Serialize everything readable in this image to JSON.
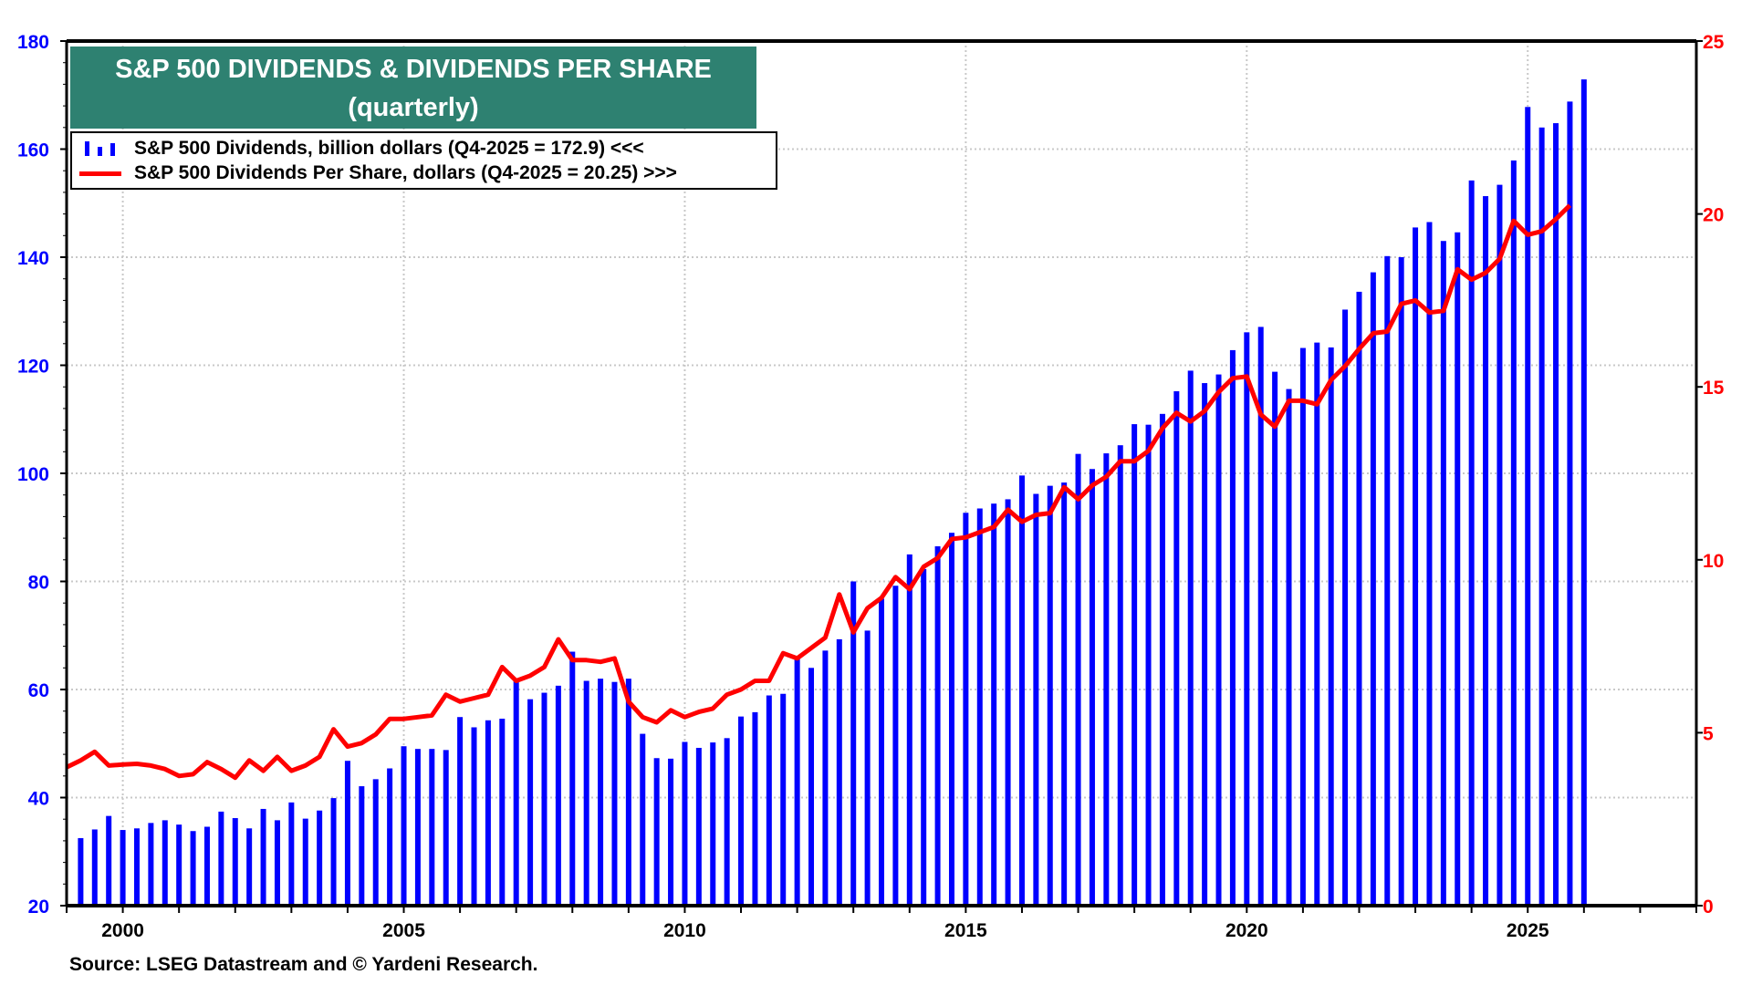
{
  "chart_data": {
    "type": "bar+line",
    "title": "S&P 500 DIVIDENDS & DIVIDENDS PER SHARE",
    "subtitle": "(quarterly)",
    "source": "Source: LSEG Datastream and © Yardeni Research.",
    "x_ticks": [
      "2000",
      "2005",
      "2010",
      "2015",
      "2020",
      "2025"
    ],
    "x_range": [
      1999,
      2028
    ],
    "left_axis": {
      "ticks": [
        "20",
        "40",
        "60",
        "80",
        "100",
        "120",
        "140",
        "160",
        "180"
      ],
      "range": [
        20,
        180
      ],
      "color": "#0000ff"
    },
    "right_axis": {
      "ticks": [
        "0",
        "5",
        "10",
        "15",
        "20",
        "25"
      ],
      "range": [
        0,
        25
      ],
      "color": "#ff0000"
    },
    "grid": true,
    "legend_placement": "top-left",
    "start_year": 1999,
    "series": [
      {
        "name": "S&P 500 Dividends, billion dollars (Q4-2025 = 172.9) <<<",
        "type": "bar",
        "axis": "left",
        "color": "#0000ff",
        "values": [
          32.5,
          34.1,
          36.6,
          34.0,
          34.3,
          35.3,
          35.8,
          35.0,
          33.8,
          34.6,
          37.4,
          36.2,
          34.3,
          37.9,
          35.8,
          39.1,
          36.1,
          37.6,
          39.9,
          46.8,
          42.1,
          43.4,
          45.4,
          49.5,
          49.0,
          49.0,
          48.8,
          54.9,
          53.0,
          54.3,
          54.6,
          61.9,
          58.2,
          59.4,
          60.7,
          67.0,
          61.6,
          62.0,
          61.4,
          62.0,
          51.8,
          47.3,
          47.2,
          50.3,
          49.2,
          50.2,
          51.0,
          55.0,
          55.8,
          58.9,
          59.2,
          65.8,
          64.0,
          67.2,
          69.3,
          80.0,
          70.9,
          76.8,
          79.2,
          85.0,
          82.3,
          86.5,
          89.0,
          92.7,
          93.5,
          94.4,
          95.2,
          99.6,
          96.2,
          97.7,
          98.3,
          103.6,
          100.8,
          103.7,
          105.2,
          109.1,
          109.0,
          111.0,
          115.2,
          119.0,
          116.7,
          118.3,
          122.8,
          126.1,
          127.1,
          118.8,
          115.6,
          123.2,
          124.2,
          123.3,
          130.3,
          133.6,
          137.2,
          140.2,
          140.0,
          145.5,
          146.5,
          143.0,
          144.6,
          154.2,
          151.3,
          153.4,
          157.9,
          167.8,
          164.0,
          164.8,
          168.8,
          172.9
        ]
      },
      {
        "name": "S&P 500 Dividends Per Share, dollars (Q4-2025 = 20.25) >>>",
        "type": "line",
        "axis": "right",
        "color": "#ff0000",
        "values": [
          4.0,
          4.2,
          4.45,
          4.05,
          4.08,
          4.1,
          4.05,
          3.95,
          3.75,
          3.8,
          4.15,
          3.95,
          3.7,
          4.2,
          3.9,
          4.3,
          3.9,
          4.05,
          4.3,
          5.1,
          4.6,
          4.7,
          4.95,
          5.4,
          5.4,
          5.45,
          5.5,
          6.1,
          5.9,
          6.0,
          6.1,
          6.9,
          6.5,
          6.65,
          6.9,
          7.7,
          7.1,
          7.1,
          7.05,
          7.15,
          5.9,
          5.45,
          5.3,
          5.65,
          5.45,
          5.6,
          5.7,
          6.1,
          6.25,
          6.5,
          6.5,
          7.3,
          7.15,
          7.45,
          7.75,
          9.0,
          7.9,
          8.6,
          8.9,
          9.5,
          9.15,
          9.8,
          10.05,
          10.6,
          10.65,
          10.8,
          10.95,
          11.45,
          11.1,
          11.3,
          11.35,
          12.1,
          11.75,
          12.15,
          12.4,
          12.85,
          12.85,
          13.15,
          13.8,
          14.25,
          14.0,
          14.3,
          14.85,
          15.25,
          15.3,
          14.2,
          13.85,
          14.6,
          14.6,
          14.5,
          15.2,
          15.6,
          16.1,
          16.55,
          16.6,
          17.4,
          17.5,
          17.15,
          17.2,
          18.4,
          18.1,
          18.3,
          18.7,
          19.8,
          19.4,
          19.5,
          19.85,
          20.25
        ]
      }
    ]
  }
}
